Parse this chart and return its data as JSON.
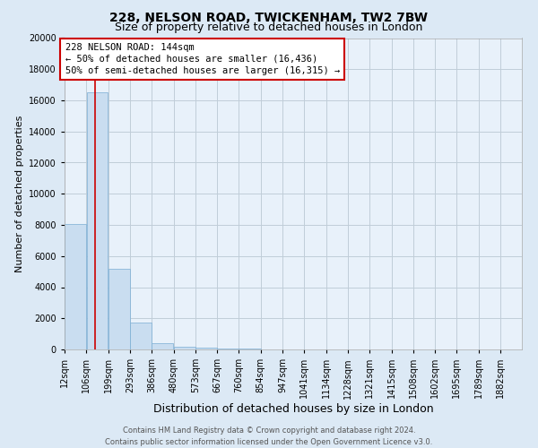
{
  "title1": "228, NELSON ROAD, TWICKENHAM, TW2 7BW",
  "title2": "Size of property relative to detached houses in London",
  "xlabel": "Distribution of detached houses by size in London",
  "ylabel": "Number of detached properties",
  "bin_labels": [
    "12sqm",
    "106sqm",
    "199sqm",
    "293sqm",
    "386sqm",
    "480sqm",
    "573sqm",
    "667sqm",
    "760sqm",
    "854sqm",
    "947sqm",
    "1041sqm",
    "1134sqm",
    "1228sqm",
    "1321sqm",
    "1415sqm",
    "1508sqm",
    "1602sqm",
    "1695sqm",
    "1789sqm",
    "1882sqm"
  ],
  "bin_edges": [
    12,
    106,
    199,
    293,
    386,
    480,
    573,
    667,
    760,
    854,
    947,
    1041,
    1134,
    1228,
    1321,
    1415,
    1508,
    1602,
    1695,
    1789,
    1882
  ],
  "bar_heights": [
    8050,
    16500,
    5200,
    1700,
    380,
    180,
    90,
    50,
    30,
    18,
    10,
    8,
    5,
    4,
    3,
    2,
    2,
    1,
    1,
    1
  ],
  "bar_color": "#c9ddf0",
  "bar_edge_color": "#7aadd4",
  "property_line_x": 144,
  "property_line_color": "#cc0000",
  "annotation_line1": "228 NELSON ROAD: 144sqm",
  "annotation_line2": "← 50% of detached houses are smaller (16,436)",
  "annotation_line3": "50% of semi-detached houses are larger (16,315) →",
  "annotation_box_color": "#ffffff",
  "annotation_box_edge_color": "#cc0000",
  "ylim": [
    0,
    20000
  ],
  "yticks": [
    0,
    2000,
    4000,
    6000,
    8000,
    10000,
    12000,
    14000,
    16000,
    18000,
    20000
  ],
  "xlim_left": 12,
  "xlim_right": 1975,
  "background_color": "#dce9f5",
  "plot_background": "#e8f1fa",
  "grid_color": "#c0cdd8",
  "footer_line1": "Contains HM Land Registry data © Crown copyright and database right 2024.",
  "footer_line2": "Contains public sector information licensed under the Open Government Licence v3.0.",
  "title1_fontsize": 10,
  "title2_fontsize": 9,
  "xlabel_fontsize": 9,
  "ylabel_fontsize": 8,
  "tick_fontsize": 7,
  "annotation_fontsize": 7.5,
  "footer_fontsize": 6
}
